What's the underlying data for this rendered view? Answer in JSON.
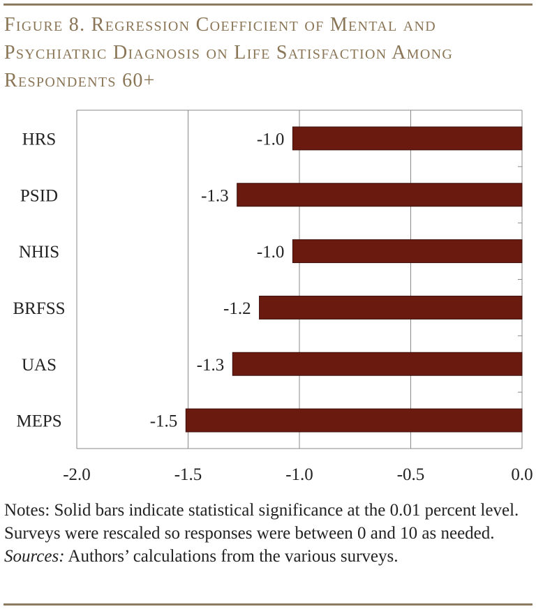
{
  "title": "Figure 8. Regression Coefficient of Mental and Psychiatric Diagnosis on Life Satisfaction Among Respondents 60+",
  "notes": {
    "text": "Notes: Solid bars indicate statistical significance at the 0.01 percent level.  Surveys were rescaled so responses were between 0 and 10 as needed.",
    "sources_label": "Sources:",
    "sources_text": " Authors’ calculations from the various surveys."
  },
  "colors": {
    "bar": "#6b1a10",
    "title": "#8a7556",
    "rule": "#8c7b5f",
    "axis": "#888888",
    "grid": "#888888"
  },
  "chart_data": {
    "type": "bar",
    "orientation": "horizontal",
    "categories": [
      "HRS",
      "PSID",
      "NHIS",
      "BRFSS",
      "UAS",
      "MEPS"
    ],
    "values": [
      -1.03,
      -1.28,
      -1.03,
      -1.18,
      -1.3,
      -1.51
    ],
    "data_labels": [
      "-1.0",
      "-1.3",
      "-1.0",
      "-1.2",
      "-1.3",
      "-1.5"
    ],
    "xlim": [
      -2.0,
      0.0
    ],
    "xticks": [
      -2.0,
      -1.5,
      -1.0,
      -0.5,
      0.0
    ],
    "xtick_labels": [
      "-2.0",
      "-1.5",
      "-1.0",
      "-0.5",
      "0.0"
    ],
    "grid": true,
    "legend": "none"
  }
}
